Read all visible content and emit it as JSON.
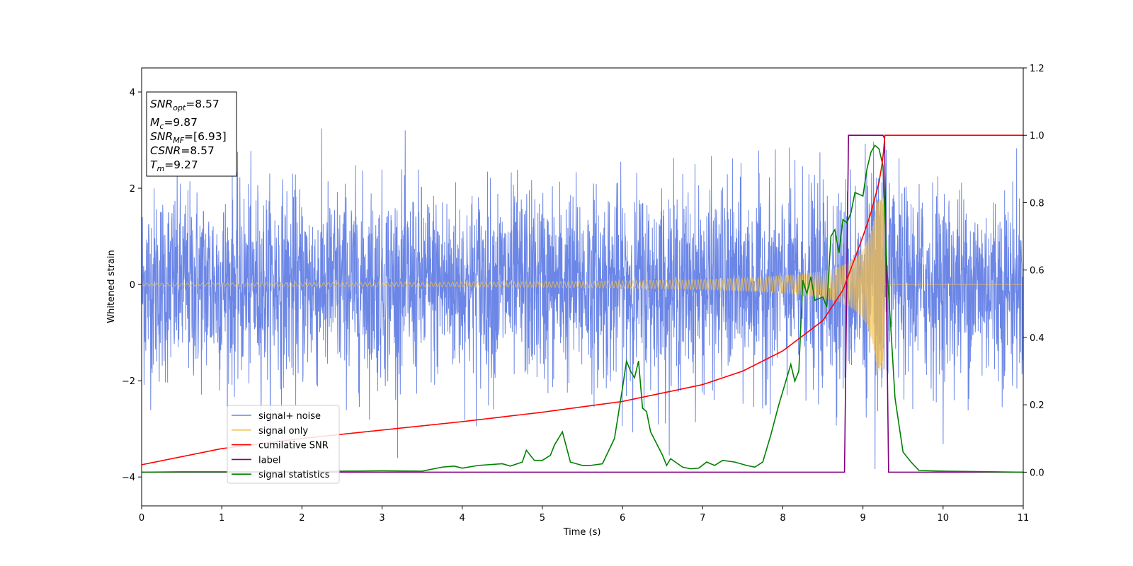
{
  "chart_data": {
    "type": "line",
    "title": "",
    "xlabel": "Time (s)",
    "ylabel": "Whitened strain",
    "xlim": [
      0,
      11
    ],
    "ylim_left": [
      -4.6,
      4.5
    ],
    "ylim_right": [
      -0.1,
      1.2
    ],
    "x_ticks": [
      "0",
      "1",
      "2",
      "3",
      "4",
      "5",
      "6",
      "7",
      "8",
      "9",
      "10",
      "11"
    ],
    "y_ticks_left": [
      "4",
      "2",
      "0",
      "−2",
      "−4"
    ],
    "y_ticks_right": [
      "1.2",
      "1.0",
      "0.8",
      "0.6",
      "0.4",
      "0.2",
      "0.0"
    ],
    "grid": false,
    "legend_location": "lower-left",
    "info_box": {
      "snr_opt": "=8.57",
      "mc": "=9.87",
      "snr_mf": "=[6.93]",
      "csnr": "=8.57",
      "tm": "=9.27"
    },
    "series": [
      {
        "name": "signal+ noise",
        "axis": "left",
        "color": "#6b86e6",
        "kind": "noise",
        "sigma": 1.0,
        "envelope_max": 3.6,
        "range": [
          0,
          11
        ]
      },
      {
        "name": "signal only",
        "axis": "left",
        "color": "#f5c04a",
        "kind": "chirp",
        "merger_time": 9.27,
        "amplitude_start": 0.03,
        "amplitude_peak": 1.8
      },
      {
        "name": "cumilative SNR",
        "axis": "right",
        "color": "#ff0000",
        "x": [
          0,
          1,
          2,
          3,
          4,
          5,
          6,
          7,
          7.5,
          8,
          8.5,
          8.75,
          9,
          9.1,
          9.2,
          9.25,
          9.27,
          10,
          11
        ],
        "y": [
          0.022,
          0.07,
          0.1,
          0.125,
          0.15,
          0.178,
          0.21,
          0.26,
          0.3,
          0.36,
          0.45,
          0.54,
          0.7,
          0.77,
          0.86,
          0.93,
          1.0,
          1.0,
          1.0
        ]
      },
      {
        "name": "label",
        "axis": "right",
        "color": "#800080",
        "x": [
          0,
          8.77,
          8.82,
          9.25,
          9.27,
          9.32,
          11
        ],
        "y": [
          0,
          0,
          1,
          1,
          0.99,
          0,
          0
        ]
      },
      {
        "name": "signal statistics",
        "axis": "right",
        "color": "#008000",
        "x": [
          0,
          0.5,
          1,
          2,
          2.5,
          3,
          3.5,
          3.75,
          3.9,
          4,
          4.2,
          4.5,
          4.6,
          4.75,
          4.8,
          4.9,
          5,
          5.1,
          5.15,
          5.25,
          5.35,
          5.5,
          5.6,
          5.75,
          5.9,
          6.0,
          6.05,
          6.1,
          6.15,
          6.2,
          6.25,
          6.3,
          6.35,
          6.5,
          6.55,
          6.6,
          6.75,
          6.85,
          6.95,
          7.05,
          7.15,
          7.25,
          7.4,
          7.55,
          7.65,
          7.75,
          7.85,
          7.95,
          8.05,
          8.1,
          8.15,
          8.2,
          8.25,
          8.3,
          8.35,
          8.4,
          8.5,
          8.55,
          8.6,
          8.65,
          8.7,
          8.75,
          8.8,
          8.85,
          8.9,
          9.0,
          9.05,
          9.1,
          9.15,
          9.2,
          9.25,
          9.3,
          9.35,
          9.4,
          9.5,
          9.6,
          9.7,
          10,
          11
        ],
        "y": [
          0,
          0.001,
          0.001,
          0.001,
          0.003,
          0.004,
          0.003,
          0.015,
          0.018,
          0.012,
          0.02,
          0.025,
          0.018,
          0.03,
          0.065,
          0.035,
          0.035,
          0.05,
          0.08,
          0.12,
          0.03,
          0.02,
          0.02,
          0.025,
          0.1,
          0.25,
          0.33,
          0.3,
          0.28,
          0.33,
          0.19,
          0.18,
          0.12,
          0.05,
          0.02,
          0.04,
          0.015,
          0.01,
          0.012,
          0.03,
          0.02,
          0.035,
          0.03,
          0.02,
          0.015,
          0.03,
          0.11,
          0.2,
          0.28,
          0.32,
          0.27,
          0.3,
          0.57,
          0.53,
          0.58,
          0.51,
          0.52,
          0.49,
          0.7,
          0.72,
          0.65,
          0.75,
          0.74,
          0.77,
          0.83,
          0.82,
          0.9,
          0.95,
          0.97,
          0.96,
          0.91,
          0.6,
          0.42,
          0.22,
          0.06,
          0.03,
          0.005,
          0.003,
          0
        ]
      }
    ]
  }
}
